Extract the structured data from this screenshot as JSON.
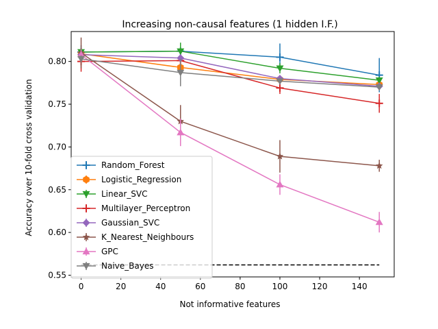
{
  "chart_data": {
    "type": "line",
    "title": "Increasing non-causal features  (1 hidden I.F.)",
    "xlabel": "Not informative features",
    "ylabel": "Accuracy over 10-fold cross validation",
    "x": [
      0,
      50,
      100,
      150
    ],
    "xlim": [
      -5,
      157.5
    ],
    "ylim": [
      0.548,
      0.835
    ],
    "xticks": [
      0,
      20,
      40,
      60,
      80,
      100,
      120,
      140
    ],
    "yticks": [
      0.55,
      0.6,
      0.65,
      0.7,
      0.75,
      0.8
    ],
    "ytick_labels": [
      "0.55",
      "0.60",
      "0.65",
      "0.70",
      "0.75",
      "0.80"
    ],
    "grid": false,
    "legend_position": "lower-left",
    "baseline": {
      "y": 0.562,
      "x_range": [
        0,
        150
      ],
      "style": "dashed",
      "color": "#000000"
    },
    "series": [
      {
        "name": "Random_Forest",
        "color": "#1f77b4",
        "marker": "plus",
        "values": [
          0.811,
          0.812,
          0.805,
          0.784
        ],
        "errors": [
          0.008,
          0.004,
          0.016,
          0.02
        ]
      },
      {
        "name": "Logistic_Regression",
        "color": "#ff7f0e",
        "marker": "hexagon",
        "values": [
          0.809,
          0.793,
          0.779,
          0.773
        ],
        "errors": [
          0.004,
          0.004,
          0.004,
          0.004
        ]
      },
      {
        "name": "Linear_SVC",
        "color": "#2ca02c",
        "marker": "triangle-down",
        "values": [
          0.811,
          0.812,
          0.792,
          0.778
        ],
        "errors": [
          0.004,
          0.01,
          0.006,
          0.004
        ]
      },
      {
        "name": "Multilayer_Perceptron",
        "color": "#d62728",
        "marker": "plus",
        "values": [
          0.8,
          0.801,
          0.769,
          0.751
        ],
        "errors": [
          0.012,
          0.006,
          0.007,
          0.011
        ]
      },
      {
        "name": "Gaussian_SVC",
        "color": "#9467bd",
        "marker": "diamond",
        "values": [
          0.808,
          0.804,
          0.78,
          0.771
        ],
        "errors": [
          0.004,
          0.004,
          0.004,
          0.004
        ]
      },
      {
        "name": "K_Nearest_Neighbours",
        "color": "#8c564b",
        "marker": "star",
        "values": [
          0.81,
          0.73,
          0.689,
          0.678
        ],
        "errors": [
          0.018,
          0.019,
          0.019,
          0.007
        ]
      },
      {
        "name": "GPC",
        "color": "#e377c2",
        "marker": "triangle-up",
        "values": [
          0.808,
          0.717,
          0.656,
          0.612
        ],
        "errors": [
          0.006,
          0.016,
          0.012,
          0.012
        ]
      },
      {
        "name": "Naive_Bayes",
        "color": "#7f7f7f",
        "marker": "triangle-down",
        "values": [
          0.803,
          0.787,
          0.777,
          0.77
        ],
        "errors": [
          0.004,
          0.016,
          0.004,
          0.004
        ]
      }
    ]
  }
}
